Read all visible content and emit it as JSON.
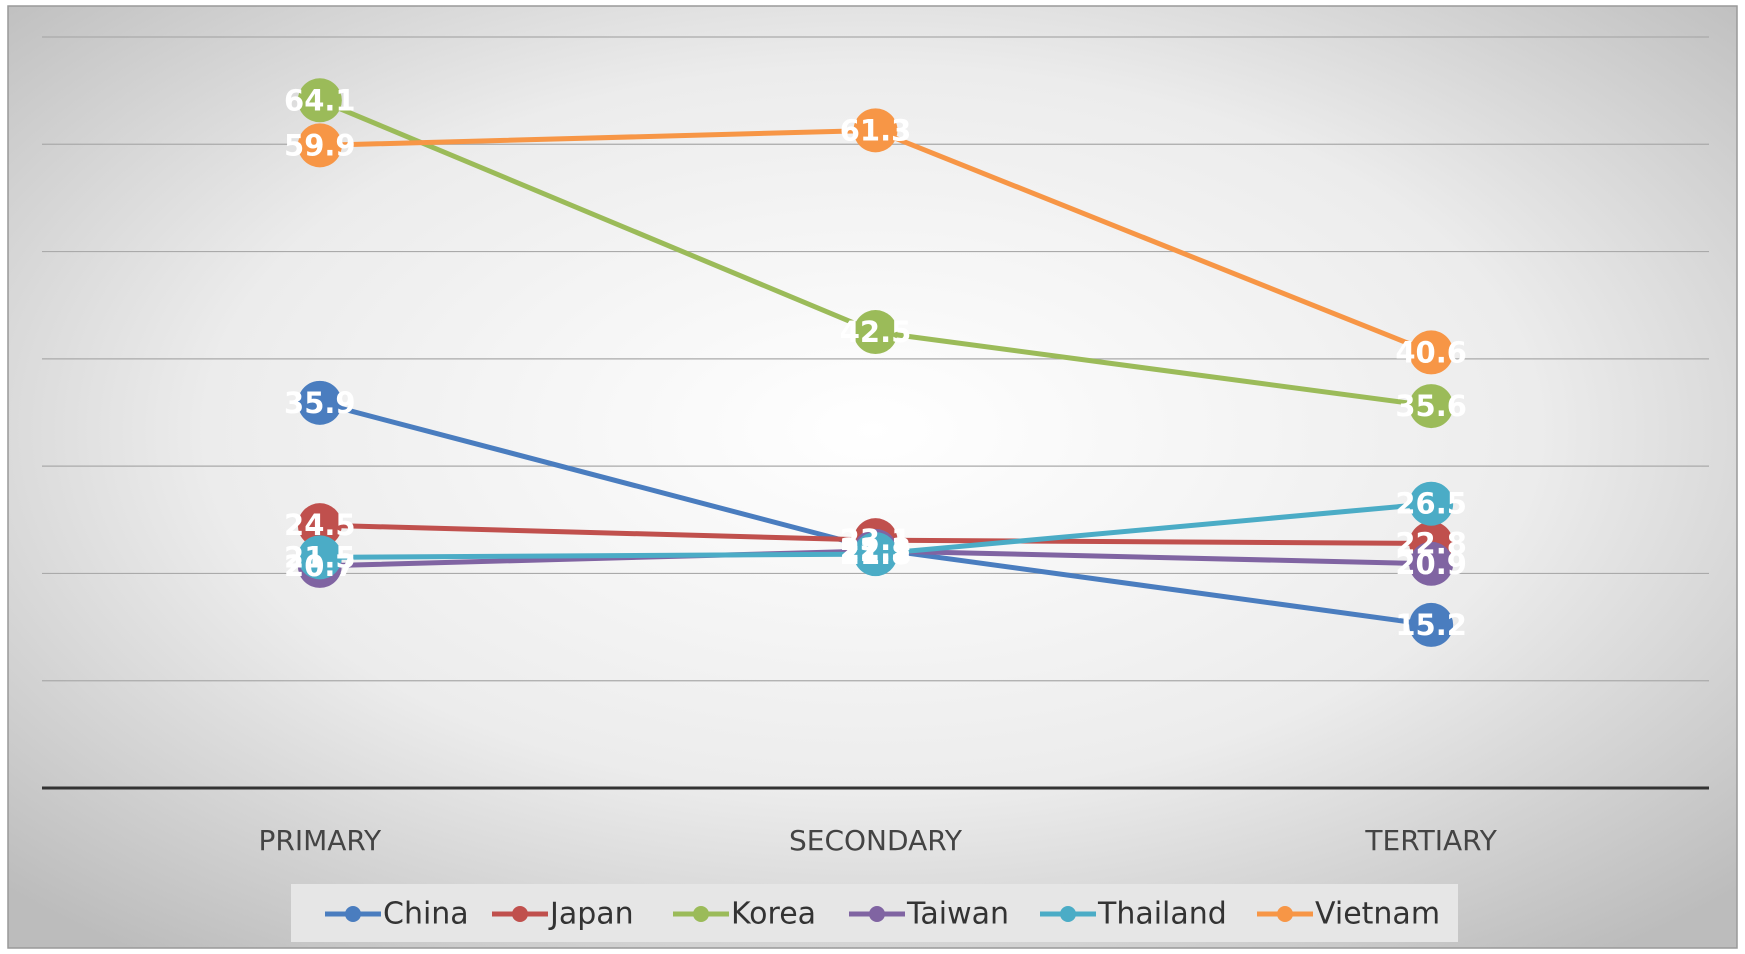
{
  "chart_data": {
    "type": "line",
    "categories": [
      "PRIMARY",
      "SECONDARY",
      "TERTIARY"
    ],
    "series": [
      {
        "name": "China",
        "color": "#4a7dbf",
        "values": [
          35.9,
          22.3,
          15.2
        ]
      },
      {
        "name": "Japan",
        "color": "#c0504d",
        "values": [
          24.5,
          23.1,
          22.8
        ]
      },
      {
        "name": "Korea",
        "color": "#9bbb59",
        "values": [
          64.1,
          42.5,
          35.6
        ]
      },
      {
        "name": "Taiwan",
        "color": "#8064a2",
        "values": [
          20.7,
          22.1,
          20.9
        ]
      },
      {
        "name": "Thailand",
        "color": "#4bacc6",
        "values": [
          21.5,
          21.8,
          26.5
        ]
      },
      {
        "name": "Vietnam",
        "color": "#f79646",
        "values": [
          59.9,
          61.3,
          40.6
        ]
      }
    ],
    "ylim": [
      0,
      70
    ],
    "yticks": [
      0,
      10,
      20,
      30,
      40,
      50,
      60,
      70
    ],
    "grid": true
  }
}
